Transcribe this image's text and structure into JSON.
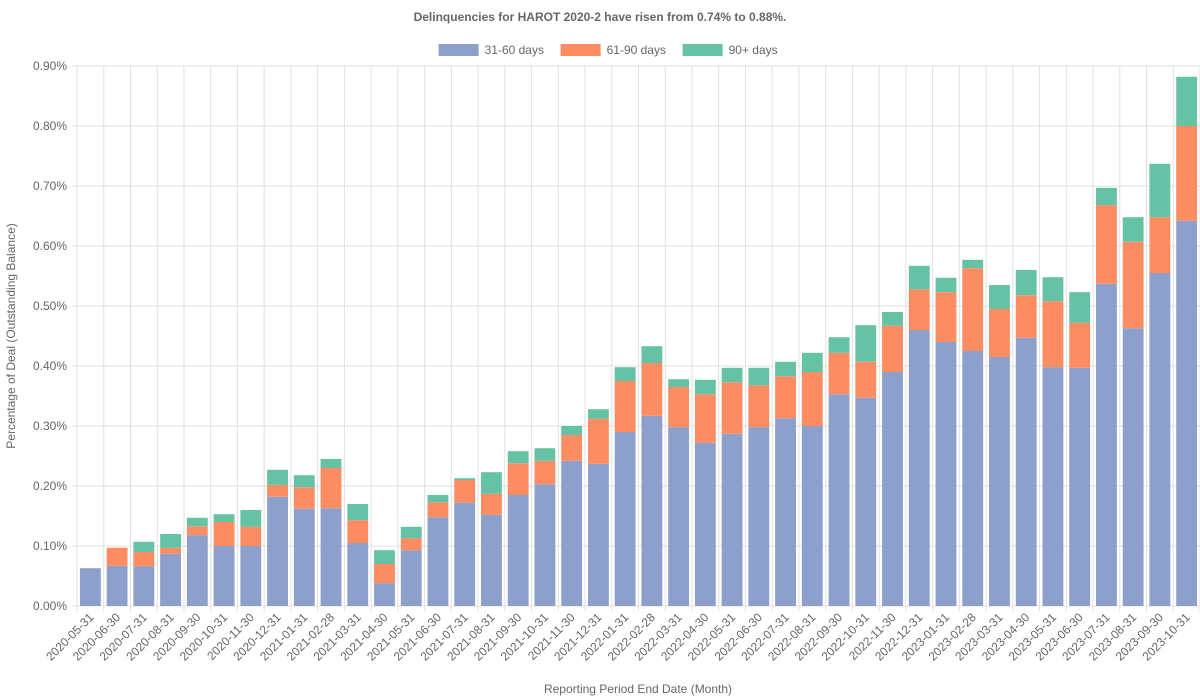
{
  "chart_data": {
    "type": "stacked-bar",
    "title": "Delinquencies for HAROT 2020-2 have risen from 0.74% to 0.88%.",
    "x_label": "Reporting Period End Date (Month)",
    "y_label": "Percentage of Deal (Outstanding Balance)",
    "categories": [
      "2020-05-31",
      "2020-06-30",
      "2020-07-31",
      "2020-08-31",
      "2020-09-30",
      "2020-10-31",
      "2020-11-30",
      "2020-12-31",
      "2021-01-31",
      "2021-02-28",
      "2021-03-31",
      "2021-04-30",
      "2021-05-31",
      "2021-06-30",
      "2021-07-31",
      "2021-08-31",
      "2021-09-30",
      "2021-10-31",
      "2021-11-30",
      "2021-12-31",
      "2022-01-31",
      "2022-02-28",
      "2022-03-31",
      "2022-04-30",
      "2022-05-31",
      "2022-06-30",
      "2022-07-31",
      "2022-08-31",
      "2022-09-30",
      "2022-10-31",
      "2022-11-30",
      "2022-12-31",
      "2023-01-31",
      "2023-02-28",
      "2023-03-31",
      "2023-04-30",
      "2023-05-31",
      "2023-06-30",
      "2023-07-31",
      "2023-08-31",
      "2023-09-30",
      "2023-10-31"
    ],
    "series": [
      {
        "name": "31-60 days",
        "color": "#8da0cb",
        "values": [
          0.063,
          0.067,
          0.066,
          0.087,
          0.118,
          0.1,
          0.1,
          0.182,
          0.162,
          0.163,
          0.105,
          0.038,
          0.093,
          0.148,
          0.172,
          0.152,
          0.185,
          0.203,
          0.242,
          0.237,
          0.29,
          0.317,
          0.298,
          0.272,
          0.287,
          0.298,
          0.313,
          0.3,
          0.353,
          0.347,
          0.39,
          0.46,
          0.44,
          0.425,
          0.415,
          0.447,
          0.398,
          0.397,
          0.537,
          0.463,
          0.555,
          0.642
        ]
      },
      {
        "name": "61-90 days",
        "color": "#fc8d62",
        "values": [
          0,
          0.03,
          0.024,
          0.01,
          0.015,
          0.04,
          0.032,
          0.02,
          0.036,
          0.067,
          0.038,
          0.032,
          0.02,
          0.025,
          0.038,
          0.035,
          0.053,
          0.039,
          0.043,
          0.075,
          0.085,
          0.088,
          0.067,
          0.081,
          0.086,
          0.07,
          0.07,
          0.09,
          0.069,
          0.06,
          0.077,
          0.068,
          0.083,
          0.138,
          0.08,
          0.071,
          0.11,
          0.075,
          0.131,
          0.144,
          0.093,
          0.158
        ]
      },
      {
        "name": "90+ days",
        "color": "#66c2a5",
        "values": [
          0,
          0,
          0.017,
          0.023,
          0.014,
          0.013,
          0.028,
          0.025,
          0.02,
          0.015,
          0.027,
          0.023,
          0.019,
          0.012,
          0.003,
          0.036,
          0.02,
          0.021,
          0.015,
          0.016,
          0.023,
          0.028,
          0.013,
          0.024,
          0.024,
          0.029,
          0.024,
          0.032,
          0.026,
          0.061,
          0.023,
          0.039,
          0.024,
          0.014,
          0.04,
          0.042,
          0.04,
          0.051,
          0.029,
          0.041,
          0.089,
          0.082
        ]
      }
    ],
    "ylim": [
      0,
      0.9
    ],
    "yticks": [
      {
        "value": 0,
        "label": "0.00%"
      },
      {
        "value": 0.1,
        "label": "0.10%"
      },
      {
        "value": 0.2,
        "label": "0.20%"
      },
      {
        "value": 0.3,
        "label": "0.30%"
      },
      {
        "value": 0.4,
        "label": "0.40%"
      },
      {
        "value": 0.5,
        "label": "0.50%"
      },
      {
        "value": 0.6,
        "label": "0.60%"
      },
      {
        "value": 0.7,
        "label": "0.70%"
      },
      {
        "value": 0.8,
        "label": "0.80%"
      },
      {
        "value": 0.9,
        "label": "0.90%"
      }
    ],
    "grid": true,
    "legend": "top"
  }
}
